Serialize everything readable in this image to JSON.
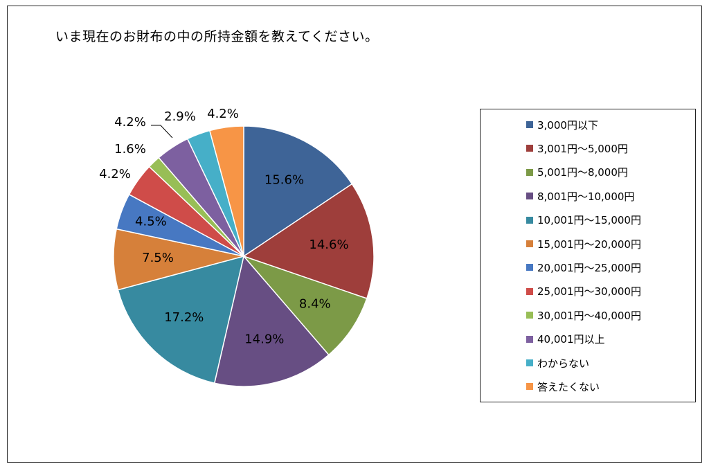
{
  "chart_data": {
    "type": "pie",
    "title": "いま現在のお財布の中の所持金額を教えてください。",
    "start_angle_deg": 0,
    "direction": "clockwise",
    "legend_position": "right",
    "slices": [
      {
        "label": "3,000円以下",
        "value": 15.6,
        "value_label": "15.6%",
        "color": "#3E6497"
      },
      {
        "label": "3,001円～5,000円",
        "value": 14.6,
        "value_label": "14.6%",
        "color": "#9E3E3B"
      },
      {
        "label": "5,001円～8,000円",
        "value": 8.4,
        "value_label": "8.4%",
        "color": "#7C9A47"
      },
      {
        "label": "8,001円～10,000円",
        "value": 14.9,
        "value_label": "14.9%",
        "color": "#674E83"
      },
      {
        "label": "10,001円～15,000円",
        "value": 17.2,
        "value_label": "17.2%",
        "color": "#378AA0"
      },
      {
        "label": "15,001円～20,000円",
        "value": 7.5,
        "value_label": "7.5%",
        "color": "#D6803A"
      },
      {
        "label": "20,001円～25,000円",
        "value": 4.5,
        "value_label": "4.5%",
        "color": "#4778C2"
      },
      {
        "label": "25,001円～30,000円",
        "value": 4.2,
        "value_label": "4.2%",
        "color": "#CF4C49"
      },
      {
        "label": "30,001円～40,000円",
        "value": 1.6,
        "value_label": "1.6%",
        "color": "#98BE56"
      },
      {
        "label": "40,001円以上",
        "value": 4.2,
        "value_label": "4.2%",
        "color": "#7D60A0"
      },
      {
        "label": "わからない",
        "value": 2.9,
        "value_label": "2.9%",
        "color": "#46AFC8"
      },
      {
        "label": "答えたくない",
        "value": 4.2,
        "value_label": "4.2%",
        "color": "#F79546"
      }
    ]
  }
}
